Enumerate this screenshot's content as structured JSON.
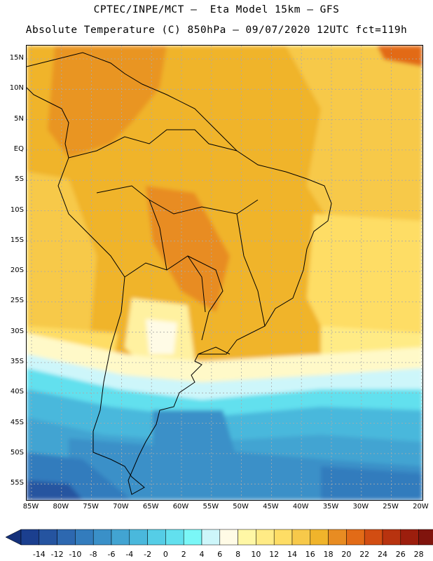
{
  "header": {
    "line1": "CPTEC/INPE/MCT –  Eta Model 15km – GFS",
    "line2": "Absolute Temperature (C) 850hPa – 09/07/2020 12UTC fct=119h"
  },
  "axes": {
    "lat_labels": [
      "15N",
      "10N",
      "5N",
      "EQ",
      "5S",
      "10S",
      "15S",
      "20S",
      "25S",
      "30S",
      "35S",
      "40S",
      "45S",
      "50S",
      "55S"
    ],
    "lon_labels": [
      "85W",
      "80W",
      "75W",
      "70W",
      "65W",
      "60W",
      "55W",
      "50W",
      "45W",
      "40W",
      "35W",
      "30W",
      "25W",
      "20W"
    ],
    "lat_values": [
      15,
      10,
      5,
      0,
      -5,
      -10,
      -15,
      -20,
      -25,
      -30,
      -35,
      -40,
      -45,
      -50,
      -55
    ],
    "lon_values": [
      -85,
      -80,
      -75,
      -70,
      -65,
      -60,
      -55,
      -50,
      -45,
      -40,
      -35,
      -30,
      -25,
      -20
    ],
    "lat_range": [
      -58,
      17
    ],
    "lon_range": [
      -86,
      -20
    ]
  },
  "colorbar": {
    "labels": [
      "-14",
      "-12",
      "-10",
      "-8",
      "-6",
      "-4",
      "-2",
      "0",
      "2",
      "4",
      "6",
      "8",
      "10",
      "12",
      "14",
      "16",
      "18",
      "20",
      "22",
      "24",
      "26",
      "28"
    ],
    "colors": [
      "#1b3f8f",
      "#2554a0",
      "#2d68b0",
      "#337cbd",
      "#3a90c8",
      "#42a4d2",
      "#4ab8dc",
      "#55cde6",
      "#62e0ee",
      "#7af7f7",
      "#cdf6fa",
      "#fffbe6",
      "#fff7a5",
      "#ffeb85",
      "#fedd65",
      "#f7c94a",
      "#f0b42b",
      "#e88c22",
      "#e26b17",
      "#d24d12",
      "#b8330f",
      "#9c1e0d",
      "#80140d"
    ],
    "under_color": "#14307a",
    "over_color": "#6b0e0a"
  },
  "legend": {
    "map_region": "South America"
  }
}
